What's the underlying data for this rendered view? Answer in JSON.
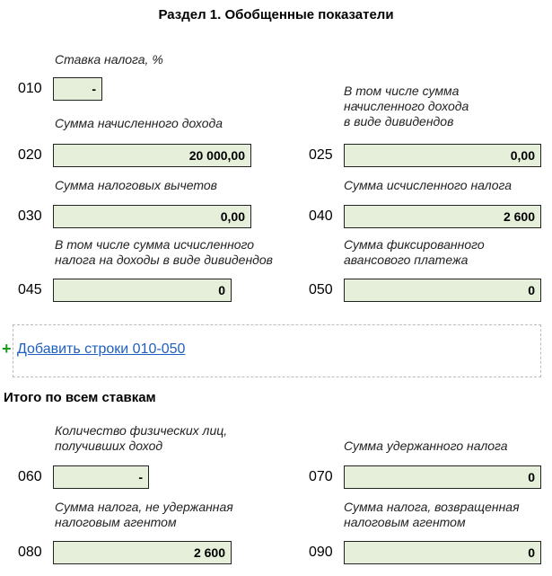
{
  "section_title": "Раздел 1. Обобщенные показатели",
  "fields": {
    "f010": {
      "code": "010",
      "label": "Ставка налога, %",
      "value": "-"
    },
    "f020": {
      "code": "020",
      "label": "Сумма начисленного дохода",
      "value": "20 000,00"
    },
    "f025": {
      "code": "025",
      "label": "В том числе сумма\nначисленного дохода\nв виде дивидендов",
      "value": "0,00"
    },
    "f030": {
      "code": "030",
      "label": "Сумма налоговых вычетов",
      "value": "0,00"
    },
    "f040": {
      "code": "040",
      "label": "Сумма исчисленного налога",
      "value": "2 600"
    },
    "f045": {
      "code": "045",
      "label": "В том числе сумма исчисленного\nналога на доходы в виде дивидендов",
      "value": "0"
    },
    "f050": {
      "code": "050",
      "label": "Сумма фиксированного\nавансового платежа",
      "value": "0"
    },
    "f060": {
      "code": "060",
      "label": "Количество физических лиц,\nполучивших доход",
      "value": "-"
    },
    "f070": {
      "code": "070",
      "label": "Сумма удержанного налога",
      "value": "0"
    },
    "f080": {
      "code": "080",
      "label": "Сумма налога, не удержанная\nналоговым агентом",
      "value": "2 600"
    },
    "f090": {
      "code": "090",
      "label": "Сумма налога, возвращенная\nналоговым агентом",
      "value": "0"
    }
  },
  "add_rows_link": "Добавить строки 010-050",
  "totals_title": "Итого по всем ставкам",
  "colors": {
    "field_bg": "#e6efd9",
    "link": "#1f5fbf",
    "plus": "#1a9a1a"
  }
}
